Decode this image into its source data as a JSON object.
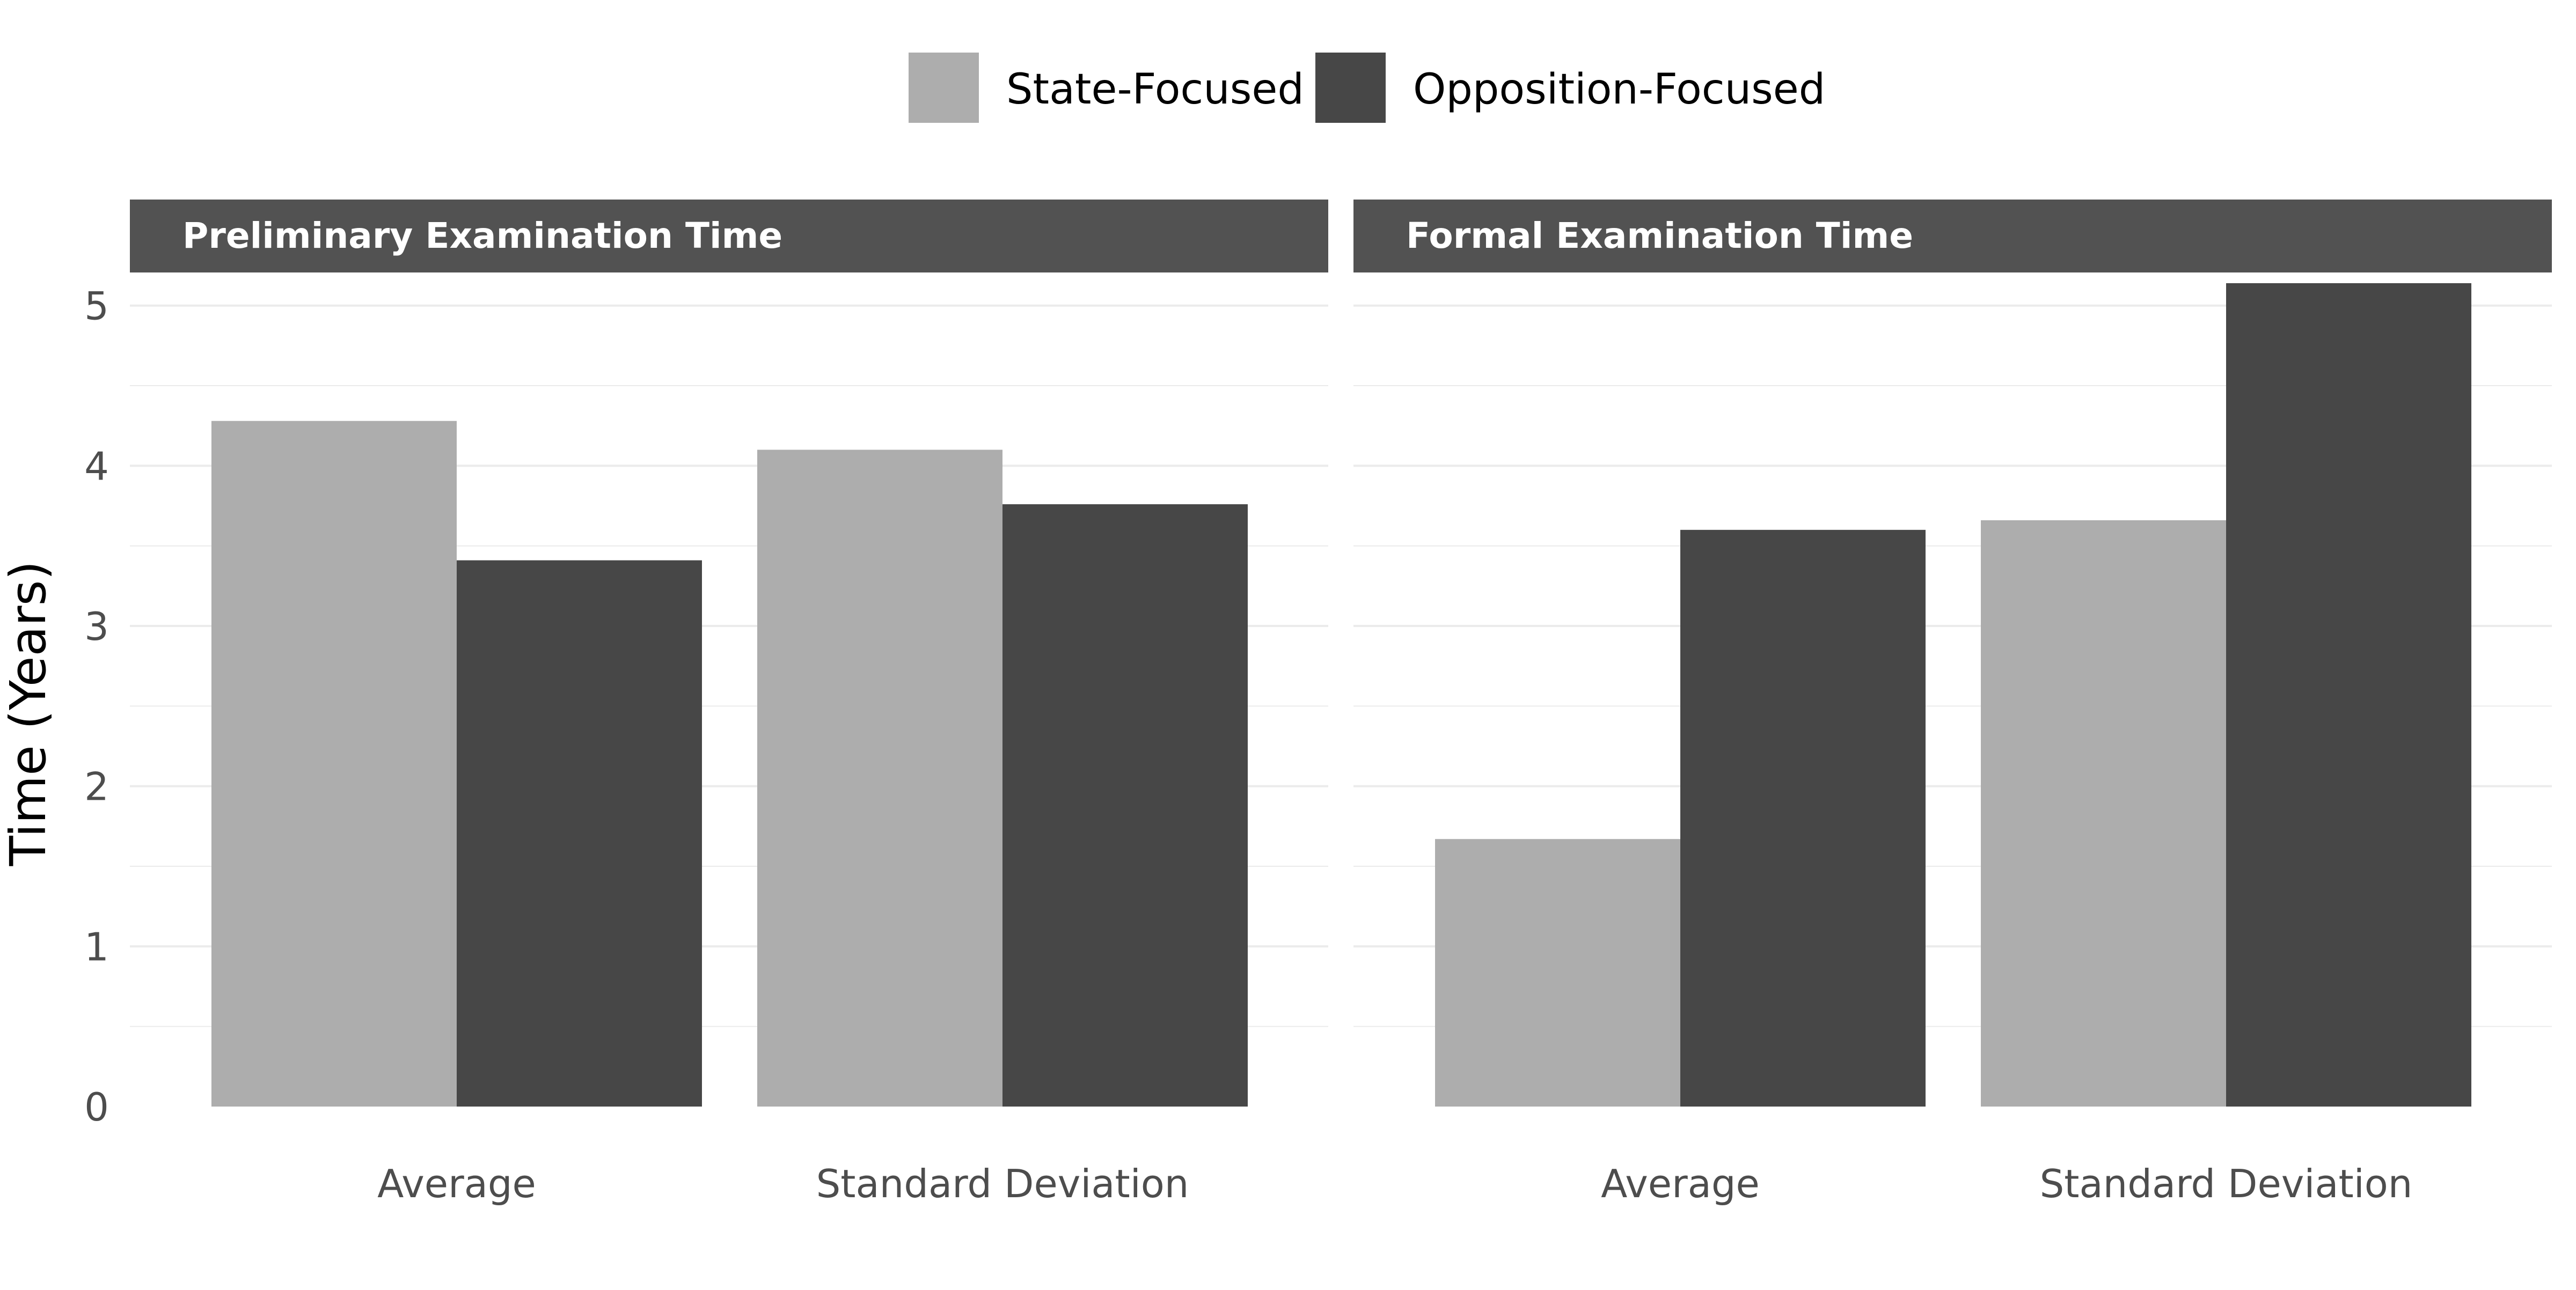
{
  "chart_data": {
    "type": "bar",
    "legend": {
      "position": "top",
      "entries": [
        {
          "name": "State-Focused",
          "color": "#adadad"
        },
        {
          "name": "Opposition-Focused",
          "color": "#474747"
        }
      ]
    },
    "ylabel": "Time (Years)",
    "ylim": [
      0,
      5.2
    ],
    "yticks": [
      0,
      1,
      2,
      3,
      4,
      5
    ],
    "grid": true,
    "colors": {
      "strip_background": "#525252",
      "strip_text": "#ffffff",
      "gridline": "#ebebeb",
      "tick_text": "#4d4d4d",
      "axis_title": "#000000"
    },
    "panels": [
      {
        "title": "Preliminary Examination Time",
        "categories": [
          "Average",
          "Standard Deviation"
        ],
        "series": [
          {
            "name": "State-Focused",
            "values": [
              4.28,
              4.1
            ]
          },
          {
            "name": "Opposition-Focused",
            "values": [
              3.41,
              3.76
            ]
          }
        ]
      },
      {
        "title": "Formal Examination Time",
        "categories": [
          "Average",
          "Standard Deviation"
        ],
        "series": [
          {
            "name": "State-Focused",
            "values": [
              1.67,
              3.66
            ]
          },
          {
            "name": "Opposition-Focused",
            "values": [
              3.6,
              5.14
            ]
          }
        ]
      }
    ]
  }
}
